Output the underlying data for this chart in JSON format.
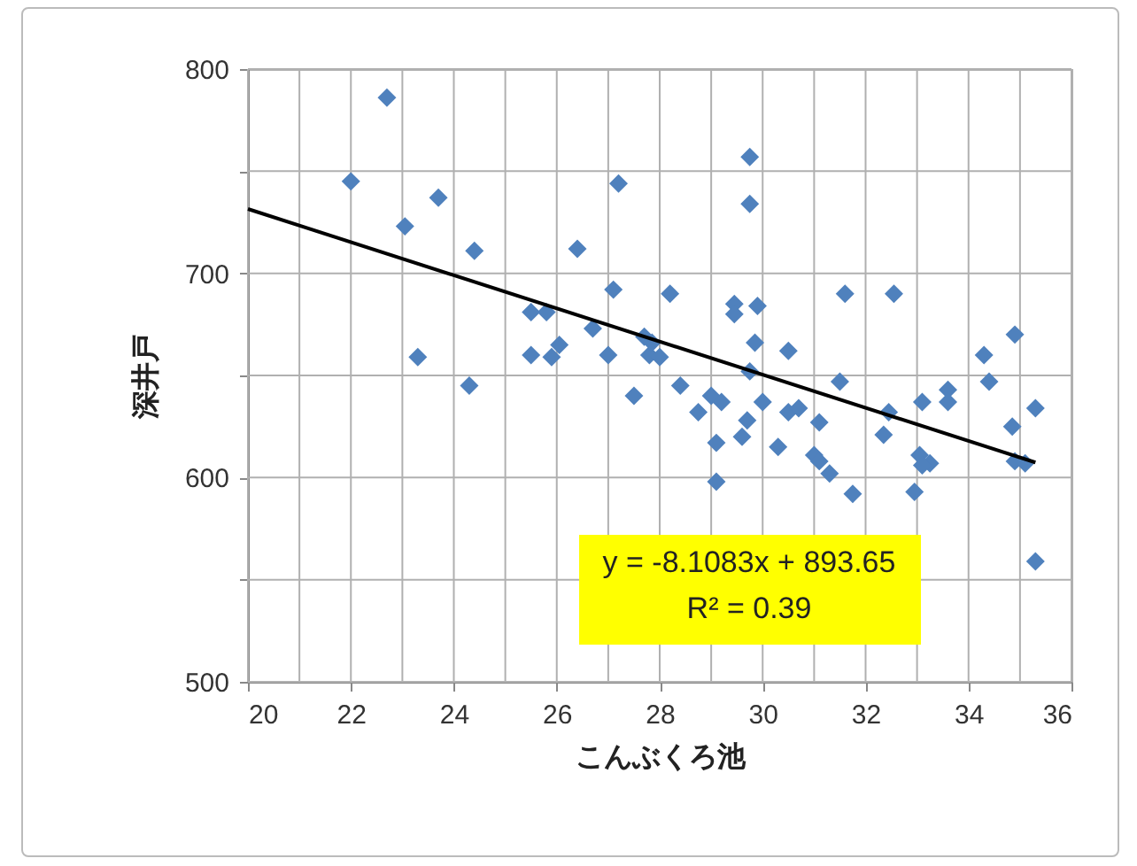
{
  "chart_data": {
    "type": "scatter",
    "xlabel": "こんぶくろ池",
    "ylabel": "深井戸",
    "xlim": [
      20,
      36
    ],
    "ylim": [
      500,
      800
    ],
    "xticks": [
      20,
      {
        "value": 21,
        "label": null
      },
      22,
      {
        "value": 23,
        "label": null
      },
      24,
      {
        "value": 25,
        "label": null
      },
      26,
      {
        "value": 27,
        "label": null
      },
      28,
      {
        "value": 29,
        "label": null
      },
      30,
      {
        "value": 31,
        "label": null
      },
      32,
      {
        "value": 33,
        "label": null
      },
      34,
      {
        "value": 35,
        "label": null
      },
      36
    ],
    "yticks": [
      500,
      {
        "value": 550,
        "label": null
      },
      600,
      {
        "value": 650,
        "label": null
      },
      700,
      {
        "value": 750,
        "label": null
      },
      800
    ],
    "grid": true,
    "marker": "diamond",
    "series": [
      {
        "color": "#4f81bd",
        "x": [
          22.0,
          22.7,
          23.05,
          23.3,
          23.7,
          24.4,
          24.3,
          26.4,
          27.2,
          27.1,
          25.5,
          25.8,
          25.5,
          25.9,
          26.05,
          26.7,
          27.0,
          27.5,
          27.7,
          27.8,
          28.2,
          27.85,
          28.0,
          28.4,
          28.75,
          29.0,
          29.2,
          29.1,
          29.1,
          29.45,
          29.45,
          29.9,
          29.85,
          29.75,
          29.75,
          29.75,
          29.7,
          29.6,
          30.0,
          30.3,
          30.5,
          30.5,
          30.7,
          31.1,
          31.0,
          31.1,
          31.3,
          31.5,
          31.6,
          31.75,
          32.55,
          32.45,
          32.35,
          33.1,
          33.05,
          33.25,
          33.6,
          33.6,
          32.95,
          34.3,
          34.4,
          34.9,
          34.85,
          34.9,
          35.1,
          35.3,
          35.3,
          33.1
        ],
        "values": [
          745,
          786,
          723,
          659,
          737,
          711,
          645,
          712,
          744,
          692,
          681,
          681,
          660,
          659,
          665,
          673,
          660,
          640,
          669,
          660,
          690,
          666,
          659,
          645,
          632,
          640,
          637,
          617,
          598,
          685,
          680,
          684,
          666,
          757,
          734,
          652,
          628,
          620,
          637,
          615,
          662,
          632,
          634,
          627,
          611,
          608,
          602,
          647,
          690,
          592,
          690,
          632,
          621,
          637,
          611,
          607,
          643,
          637,
          593,
          660,
          647,
          670,
          625,
          608,
          607,
          634,
          559,
          606
        ]
      },
      {
        "type": "line",
        "color": "#000000",
        "line_style": "solid",
        "marker": "none",
        "x": [
          20,
          35.3
        ],
        "values": [
          731.5,
          607.4
        ]
      }
    ],
    "annotations": [
      "y = -8.1083x + 893.65",
      "R² = 0.39"
    ]
  }
}
